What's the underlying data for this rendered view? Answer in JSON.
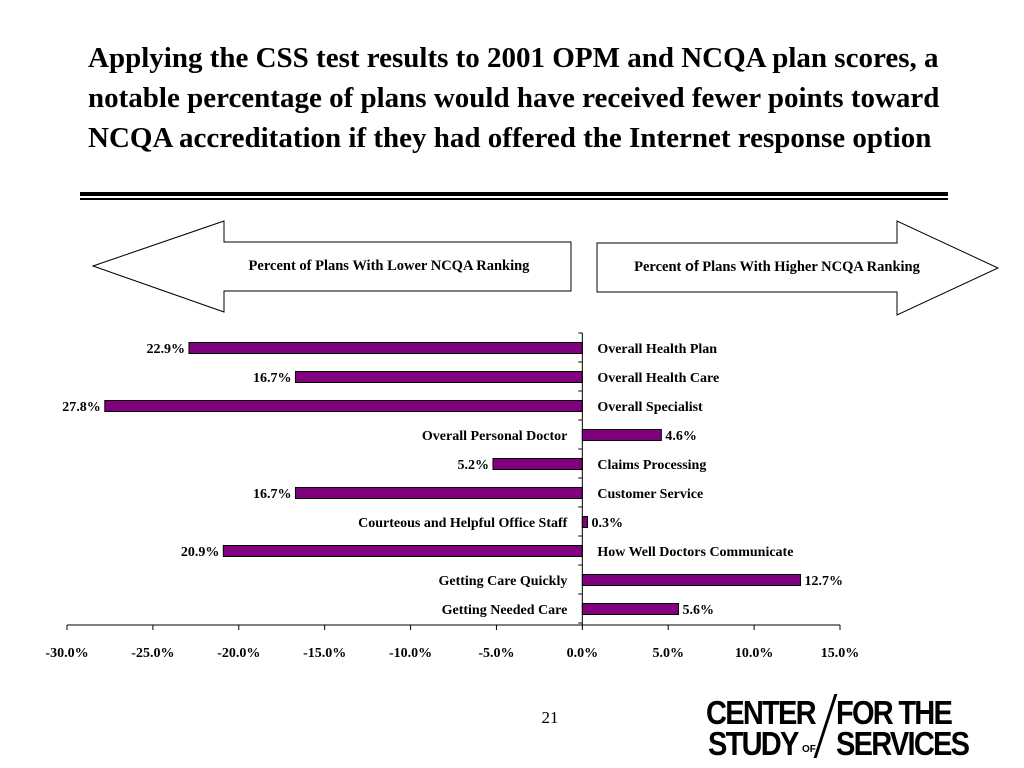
{
  "slide": {
    "title": "Applying the CSS test results to 2001 OPM and NCQA plan scores, a notable percentage of plans would have received fewer points toward NCQA accreditation if they had offered the Internet response option",
    "page_number": "21"
  },
  "banners": {
    "left": "Percent of Plans With Lower NCQA Ranking",
    "right_prefix": "Percent ",
    "right_of": "of",
    "right_suffix": " Plans With Higher NCQA Ranking"
  },
  "logo": {
    "line1_left": "CENTER",
    "line1_right": "FOR THE",
    "line2_left": "STUDY",
    "line2_of": "OF",
    "line2_right": "SERVICES"
  },
  "chart_data": {
    "type": "bar",
    "orientation": "horizontal",
    "categories": [
      "Overall Health Plan",
      "Overall Health Care",
      "Overall Specialist",
      "Overall Personal Doctor",
      "Claims Processing",
      "Customer Service",
      "Courteous and Helpful Office Staff",
      "How Well Doctors Communicate",
      "Getting Care Quickly",
      "Getting Needed Care"
    ],
    "values": [
      -22.9,
      -16.7,
      -27.8,
      4.6,
      -5.2,
      -16.7,
      0.3,
      -20.9,
      12.7,
      5.6
    ],
    "data_labels": [
      "22.9%",
      "16.7%",
      "27.8%",
      "4.6%",
      "5.2%",
      "16.7%",
      "0.3%",
      "20.9%",
      "12.7%",
      "5.6%"
    ],
    "xlim": [
      -30,
      15
    ],
    "x_ticks": [
      -30,
      -25,
      -20,
      -15,
      -10,
      -5,
      0,
      5,
      10,
      15
    ],
    "x_tick_labels": [
      "-30.0%",
      "-25.0%",
      "-20.0%",
      "-15.0%",
      "-10.0%",
      "-5.0%",
      "0.0%",
      "5.0%",
      "10.0%",
      "15.0%"
    ],
    "bar_color": "#800080",
    "grid": false
  }
}
